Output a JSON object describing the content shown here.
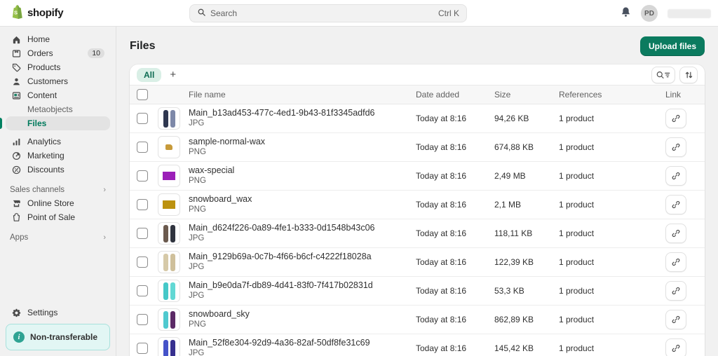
{
  "colors": {
    "brand_green": "#95BF47",
    "accent_text": "#007a5c",
    "active_indicator": "#008060",
    "primary_button": "#0b7b5f",
    "banner_bg": "#e2f6f4",
    "banner_border": "#a8e1dc",
    "banner_icon": "#2fa393",
    "all_tab_bg": "#d9efe6"
  },
  "topbar": {
    "brand": "shopify",
    "search_placeholder": "Search",
    "search_shortcut": "Ctrl K",
    "avatar_initials": "PD"
  },
  "sidebar": {
    "items": [
      {
        "label": "Home",
        "icon": "home-icon"
      },
      {
        "label": "Orders",
        "icon": "orders-icon",
        "badge": "10"
      },
      {
        "label": "Products",
        "icon": "tag-icon"
      },
      {
        "label": "Customers",
        "icon": "person-icon"
      },
      {
        "label": "Content",
        "icon": "content-icon"
      }
    ],
    "content_children": [
      {
        "label": "Metaobjects",
        "active": false
      },
      {
        "label": "Files",
        "active": true
      }
    ],
    "secondary": [
      {
        "label": "Analytics",
        "icon": "bar-chart-icon"
      },
      {
        "label": "Marketing",
        "icon": "marketing-icon"
      },
      {
        "label": "Discounts",
        "icon": "percent-icon"
      }
    ],
    "sales_channels_label": "Sales channels",
    "channels": [
      {
        "label": "Online Store",
        "icon": "store-icon"
      },
      {
        "label": "Point of Sale",
        "icon": "bag-icon"
      }
    ],
    "apps_label": "Apps",
    "settings_label": "Settings",
    "banner_label": "Non-transferable"
  },
  "page": {
    "title": "Files",
    "upload_button": "Upload files"
  },
  "tabs": {
    "all_label": "All",
    "add_label": "+"
  },
  "table": {
    "headers": {
      "file_name": "File name",
      "date_added": "Date added",
      "size": "Size",
      "references": "References",
      "link": "Link"
    },
    "rows": [
      {
        "name": "Main_b13ad453-477c-4ed1-9b43-81f3345adfd6",
        "type": "JPG",
        "date_added": "Today at 8:16",
        "size": "94,26 KB",
        "references": "1 product",
        "thumb": {
          "kind": "boards",
          "colors": [
            "#2f3750",
            "#7d88a8"
          ]
        }
      },
      {
        "name": "sample-normal-wax",
        "type": "PNG",
        "date_added": "Today at 8:16",
        "size": "674,88 KB",
        "references": "1 product",
        "thumb": {
          "kind": "blob",
          "colors": [
            "#c79a3a"
          ]
        }
      },
      {
        "name": "wax-special",
        "type": "PNG",
        "date_added": "Today at 8:16",
        "size": "2,49 MB",
        "references": "1 product",
        "thumb": {
          "kind": "rect",
          "colors": [
            "#9b1fb8"
          ]
        }
      },
      {
        "name": "snowboard_wax",
        "type": "PNG",
        "date_added": "Today at 8:16",
        "size": "2,1 MB",
        "references": "1 product",
        "thumb": {
          "kind": "rect",
          "colors": [
            "#bc920f"
          ]
        }
      },
      {
        "name": "Main_d624f226-0a89-4fe1-b333-0d1548b43c06",
        "type": "JPG",
        "date_added": "Today at 8:16",
        "size": "118,11 KB",
        "references": "1 product",
        "thumb": {
          "kind": "boards",
          "colors": [
            "#6b5a4e",
            "#30343f"
          ]
        }
      },
      {
        "name": "Main_9129b69a-0c7b-4f66-b6cf-c4222f18028a",
        "type": "JPG",
        "date_added": "Today at 8:16",
        "size": "122,39 KB",
        "references": "1 product",
        "thumb": {
          "kind": "boards",
          "colors": [
            "#d6c9a8",
            "#cfc09b"
          ]
        }
      },
      {
        "name": "Main_b9e0da7f-db89-4d41-83f0-7f417b02831d",
        "type": "JPG",
        "date_added": "Today at 8:16",
        "size": "53,3 KB",
        "references": "1 product",
        "thumb": {
          "kind": "boards",
          "colors": [
            "#45c8c8",
            "#62d8d4"
          ]
        }
      },
      {
        "name": "snowboard_sky",
        "type": "PNG",
        "date_added": "Today at 8:16",
        "size": "862,89 KB",
        "references": "1 product",
        "thumb": {
          "kind": "boards",
          "colors": [
            "#4fc9cf",
            "#5b2a66"
          ]
        }
      },
      {
        "name": "Main_52f8e304-92d9-4a36-82af-50df8fe31c69",
        "type": "JPG",
        "date_added": "Today at 8:16",
        "size": "145,42 KB",
        "references": "1 product",
        "thumb": {
          "kind": "boards",
          "colors": [
            "#4553c9",
            "#37308f"
          ]
        }
      }
    ]
  }
}
